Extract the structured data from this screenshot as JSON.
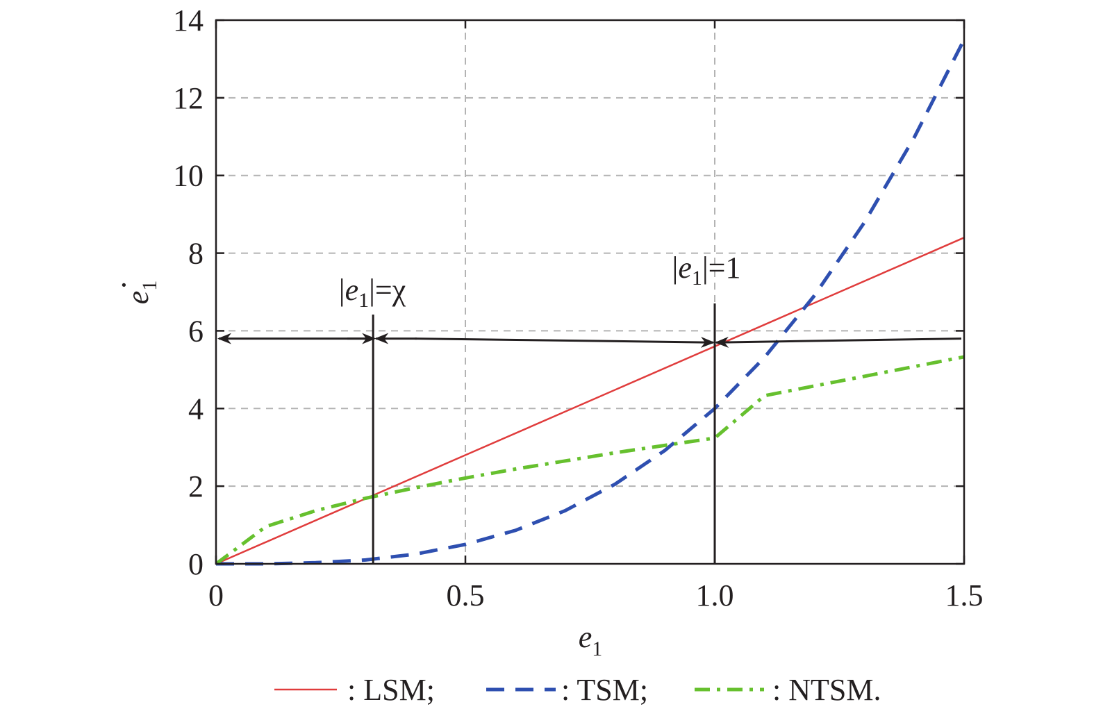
{
  "chart_data": {
    "type": "line",
    "xlabel": "e1",
    "ylabel": "e1",
    "xlim": [
      0,
      1.5
    ],
    "ylim": [
      0,
      14
    ],
    "xticks": [
      0,
      0.5,
      1.0,
      1.5
    ],
    "xtick_labels": [
      "0",
      "0.5",
      "1.0",
      "1.5"
    ],
    "yticks": [
      0,
      2,
      4,
      6,
      8,
      10,
      12,
      14
    ],
    "ytick_labels": [
      "0",
      "2",
      "4",
      "6",
      "8",
      "10",
      "12",
      "14"
    ],
    "grid": true,
    "legend_position": "bottom",
    "series": [
      {
        "name": ": LSM;",
        "color": "#e03c3c",
        "style": "solid",
        "x": [
          0,
          0.25,
          0.5,
          0.75,
          1.0,
          1.25,
          1.5
        ],
        "y": [
          0,
          1.4,
          2.8,
          4.2,
          5.6,
          7.0,
          8.4
        ]
      },
      {
        "name": ": TSM;",
        "color": "#2e4fb0",
        "style": "dashed",
        "x": [
          0,
          0.1,
          0.2,
          0.3,
          0.4,
          0.5,
          0.6,
          0.7,
          0.8,
          0.9,
          1.0,
          1.1,
          1.2,
          1.3,
          1.4,
          1.5
        ],
        "y": [
          0,
          0.0,
          0.03,
          0.1,
          0.25,
          0.5,
          0.86,
          1.37,
          2.05,
          2.92,
          4.0,
          5.32,
          6.91,
          8.79,
          10.98,
          13.5
        ]
      },
      {
        "name": ": NTSM.",
        "color": "#66c02e",
        "style": "dashdot",
        "x": [
          0,
          0.1,
          0.2,
          0.3,
          0.4,
          0.5,
          0.6,
          0.7,
          0.8,
          0.9,
          1.0,
          1.1,
          1.2,
          1.3,
          1.4,
          1.5
        ],
        "y": [
          0,
          0.96,
          1.37,
          1.69,
          1.96,
          2.21,
          2.44,
          2.65,
          2.86,
          3.05,
          3.24,
          4.33,
          4.58,
          4.83,
          5.08,
          5.33
        ]
      }
    ],
    "annotations": {
      "chi_label_prefix": "|",
      "chi_label_var": "e",
      "chi_label_sub": "1",
      "chi_label_suffix": "|=χ",
      "chi_x": 0.315,
      "one_label_prefix": "|",
      "one_label_var": "e",
      "one_label_sub": "1",
      "one_label_suffix": "|=1",
      "one_x": 1.0,
      "arrow_y": 5.8
    },
    "axis_titles": {
      "x_var": "e",
      "x_sub": "1",
      "y_var": "e",
      "y_sub": "1",
      "y_dot": "·"
    }
  }
}
